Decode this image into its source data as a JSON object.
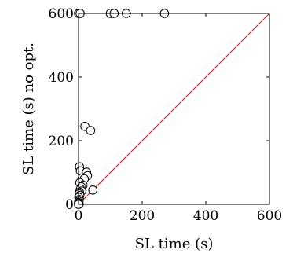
{
  "chart_data": {
    "type": "scatter",
    "xlabel": "SL time (s)",
    "ylabel": "SL time (s) no opt.",
    "xlim": [
      0,
      600
    ],
    "ylim": [
      0,
      600
    ],
    "xticks": [
      0,
      200,
      400,
      600
    ],
    "yticks": [
      0,
      200,
      400,
      600
    ],
    "grid": false,
    "diagonal": {
      "from": [
        0,
        0
      ],
      "to": [
        600,
        600
      ],
      "color": "#e8202a"
    },
    "series": [
      {
        "marker": "circle",
        "fill": "#ffffff",
        "stroke": "#000000",
        "points": [
          [
            0,
            600
          ],
          [
            5,
            600
          ],
          [
            100,
            600
          ],
          [
            112,
            600
          ],
          [
            150,
            600
          ],
          [
            270,
            600
          ],
          [
            20,
            245
          ],
          [
            38,
            232
          ],
          [
            3,
            118
          ],
          [
            6,
            105
          ],
          [
            25,
            101
          ],
          [
            28,
            90
          ],
          [
            12,
            83
          ],
          [
            18,
            80
          ],
          [
            4,
            68
          ],
          [
            14,
            60
          ],
          [
            9,
            55
          ],
          [
            6,
            48
          ],
          [
            45,
            45
          ],
          [
            10,
            42
          ],
          [
            3,
            38
          ],
          [
            2,
            33
          ],
          [
            4,
            28
          ],
          [
            1,
            22
          ],
          [
            2,
            15
          ],
          [
            1,
            10
          ],
          [
            0,
            6
          ],
          [
            1,
            4
          ],
          [
            0,
            2
          ],
          [
            2,
            1
          ],
          [
            0,
            0
          ]
        ]
      }
    ]
  }
}
